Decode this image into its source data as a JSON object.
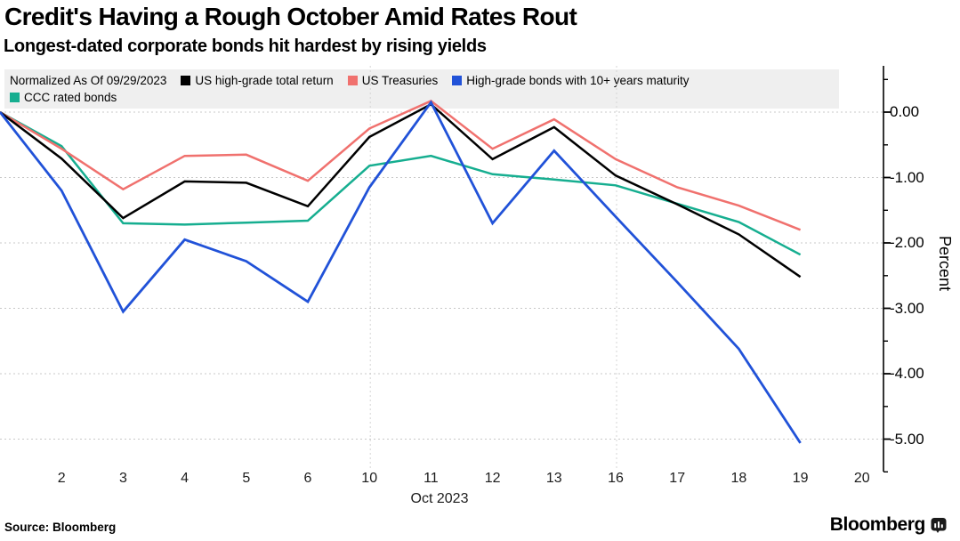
{
  "header": {
    "title": "Credit's Having a Rough October Amid Rates Rout",
    "subtitle": "Longest-dated corporate bonds hit hardest by rising yields"
  },
  "legend": {
    "note": "Normalized As Of 09/29/2023"
  },
  "chart_data": {
    "type": "line",
    "title": "Credit's Having a Rough October Amid Rates Rout",
    "categories": [
      "Sep 29",
      "Oct 2",
      "Oct 3",
      "Oct 4",
      "Oct 5",
      "Oct 6",
      "Oct 10",
      "Oct 11",
      "Oct 12",
      "Oct 13",
      "Oct 16",
      "Oct 17",
      "Oct 18",
      "Oct 19"
    ],
    "series": [
      {
        "name": "US high-grade total return",
        "color": "#000000",
        "values": [
          0,
          -0.71,
          -1.62,
          -1.06,
          -1.08,
          -1.44,
          -0.38,
          0.12,
          -0.72,
          -0.23,
          -0.97,
          -1.41,
          -1.87,
          -2.52
        ]
      },
      {
        "name": "US Treasuries",
        "color": "#F0716E",
        "values": [
          0,
          -0.56,
          -1.18,
          -0.67,
          -0.65,
          -1.05,
          -0.25,
          0.17,
          -0.56,
          -0.11,
          -0.72,
          -1.15,
          -1.43,
          -1.8
        ]
      },
      {
        "name": "High-grade bonds with 10+ years maturity",
        "color": "#2152D8",
        "values": [
          0,
          -1.2,
          -3.05,
          -1.95,
          -2.28,
          -2.9,
          -1.15,
          0.15,
          -1.7,
          -0.59,
          -1.6,
          -2.6,
          -3.62,
          -5.06
        ]
      },
      {
        "name": "CCC rated bonds",
        "color": "#16AE90",
        "values": [
          0,
          -0.52,
          -1.7,
          -1.72,
          -1.69,
          -1.66,
          -0.82,
          -0.67,
          -0.95,
          -1.03,
          -1.12,
          -1.4,
          -1.68,
          -2.18
        ]
      }
    ],
    "x_axis": {
      "label": "Oct 2023",
      "tick_labels": [
        "2",
        "3",
        "4",
        "5",
        "6",
        "10",
        "11",
        "12",
        "13",
        "16",
        "17",
        "18",
        "19",
        "20"
      ]
    },
    "y_axis": {
      "label": "Percent",
      "tick_labels": [
        "0.00",
        "-1.00",
        "-2.00",
        "-3.00",
        "-4.00",
        "-5.00"
      ],
      "tick_values": [
        0,
        -1,
        -2,
        -3,
        -4,
        -5
      ],
      "ylim": [
        -5.5,
        0.5
      ]
    },
    "grid": true,
    "legend_position": "top"
  },
  "footer": {
    "source": "Source: Bloomberg",
    "brand": "Bloomberg",
    "brand_icon": "bloomberg-terminal-icon"
  },
  "colors": {
    "legend_bg": "#efefef",
    "gridline": "#c8c8c8",
    "axis": "#000000"
  }
}
